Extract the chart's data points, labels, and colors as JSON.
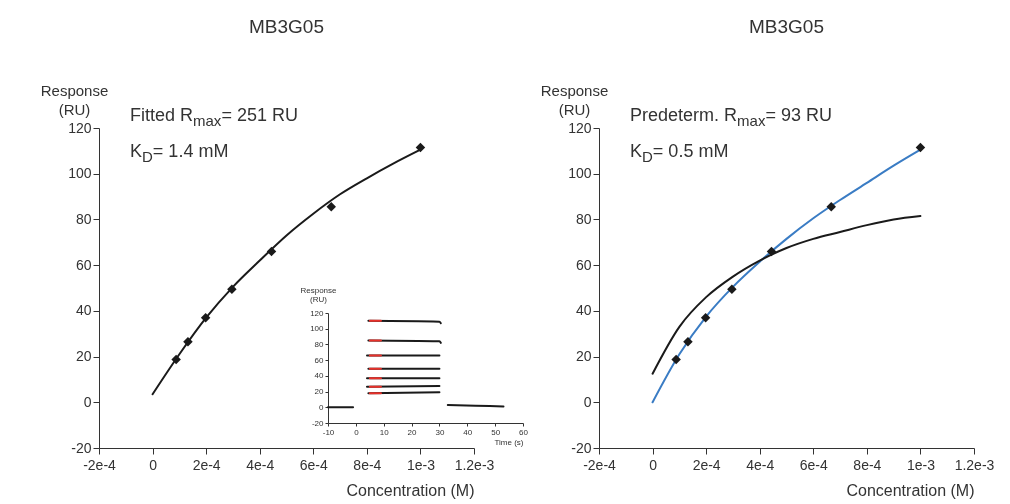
{
  "chart_data": [
    {
      "type": "line",
      "title": "MB3G05",
      "xlabel": "Concentration (M)",
      "ylabel": "Response (RU)",
      "annotations": [
        "Fitted R$_{max}$= 251 RU",
        "K$_{D}$= 1.4 mM"
      ],
      "xlim": [
        -0.0002,
        0.0012
      ],
      "xticks": [
        {
          "value": -0.0002,
          "label": "-2e-4"
        },
        0,
        {
          "value": 0.0002,
          "label": "2e-4"
        },
        {
          "value": 0.0004,
          "label": "4e-4"
        },
        {
          "value": 0.0006,
          "label": "6e-4"
        },
        {
          "value": 0.0008,
          "label": "8e-4"
        },
        {
          "value": 0.001,
          "label": "1e-3"
        },
        {
          "value": 0.0012,
          "label": "1.2e-3"
        }
      ],
      "ylim": [
        -20,
        120
      ],
      "yticks": [
        -20,
        0,
        20,
        40,
        60,
        80,
        100,
        120
      ],
      "grid": false,
      "series": [
        {
          "color": "#1a1a1a",
          "x": [
            0,
            0.0001,
            0.0002,
            0.0003,
            0.0004,
            0.0005,
            0.0006,
            0.0007,
            0.0008,
            0.0009,
            0.001
          ],
          "values": [
            3.5,
            21,
            37,
            50.5,
            62,
            73,
            82.5,
            91,
            98,
            104.5,
            110.5
          ]
        },
        {
          "type": "scatter",
          "marker": "diamond",
          "color": "#1a1a1a",
          "x": [
            8.8e-05,
            0.000132,
            0.000198,
            0.000296,
            0.000444,
            0.000667,
            0.001
          ],
          "values": [
            18.7,
            26.5,
            37,
            49.5,
            66,
            85.5,
            111.5
          ]
        }
      ]
    },
    {
      "type": "line",
      "title": "MB3G05",
      "xlabel": "Concentration (M)",
      "ylabel": "Response (RU)",
      "annotations": [
        "Predeterm. R$_{max}$= 93 RU",
        "K$_{D}$= 0.5 mM"
      ],
      "xlim": [
        -0.0002,
        0.0012
      ],
      "xticks": [
        {
          "value": -0.0002,
          "label": "-2e-4"
        },
        0,
        {
          "value": 0.0002,
          "label": "2e-4"
        },
        {
          "value": 0.0004,
          "label": "4e-4"
        },
        {
          "value": 0.0006,
          "label": "6e-4"
        },
        {
          "value": 0.0008,
          "label": "8e-4"
        },
        {
          "value": 0.001,
          "label": "1e-3"
        },
        {
          "value": 0.0012,
          "label": "1.2e-3"
        }
      ],
      "ylim": [
        -20,
        120
      ],
      "yticks": [
        -20,
        0,
        20,
        40,
        60,
        80,
        100,
        120
      ],
      "grid": false,
      "series": [
        {
          "color": "#3a7cc4",
          "x": [
            0,
            0.0001,
            0.0002,
            0.0003,
            0.0004,
            0.0005,
            0.0006,
            0.0007,
            0.0008,
            0.0009,
            0.001
          ],
          "values": [
            0,
            21,
            37.5,
            50.5,
            61.5,
            71.5,
            80.5,
            88.5,
            96,
            103.5,
            110.5
          ]
        },
        {
          "color": "#1a1a1a",
          "x": [
            0,
            0.0001,
            0.0002,
            0.0003,
            0.0004,
            0.0005,
            0.0006,
            0.0007,
            0.0008,
            0.0009,
            0.001
          ],
          "values": [
            12.5,
            33,
            46,
            55,
            62,
            67.5,
            71.5,
            74.5,
            77.5,
            80,
            81.5
          ]
        },
        {
          "type": "scatter",
          "marker": "diamond",
          "color": "#1a1a1a",
          "x": [
            8.8e-05,
            0.000132,
            0.000198,
            0.000296,
            0.000444,
            0.000667,
            0.001
          ],
          "values": [
            18.7,
            26.5,
            37,
            49.5,
            66,
            85.5,
            111.5
          ]
        }
      ]
    },
    {
      "type": "line",
      "xlabel": "Time (s)",
      "ylabel": "Response (RU)",
      "xlim": [
        -10,
        60
      ],
      "xticks": [
        -10,
        0,
        10,
        20,
        30,
        40,
        50,
        60
      ],
      "ylim": [
        -20,
        120
      ],
      "yticks": [
        -20,
        0,
        20,
        40,
        60,
        80,
        100,
        120
      ],
      "grid": false,
      "series": [
        {
          "color": "#1a1a1a",
          "x": [
            -10,
            -1
          ],
          "values": [
            0,
            0
          ]
        },
        {
          "color": "#1a1a1a",
          "x": [
            4.5,
            30,
            30.5
          ],
          "values": [
            110,
            109,
            107
          ]
        },
        {
          "color": "#1a1a1a",
          "x": [
            4.5,
            30,
            30.5
          ],
          "values": [
            85,
            84,
            82
          ]
        },
        {
          "color": "#1a1a1a",
          "x": [
            4,
            30
          ],
          "values": [
            66,
            66
          ]
        },
        {
          "color": "#1a1a1a",
          "x": [
            4.5,
            30
          ],
          "values": [
            49,
            49
          ]
        },
        {
          "color": "#1a1a1a",
          "x": [
            4,
            30
          ],
          "values": [
            37,
            37
          ]
        },
        {
          "color": "#1a1a1a",
          "x": [
            4,
            30
          ],
          "values": [
            26,
            27
          ]
        },
        {
          "color": "#1a1a1a",
          "x": [
            4.5,
            30
          ],
          "values": [
            18,
            19
          ]
        },
        {
          "color": "#1a1a1a",
          "x": [
            33,
            43,
            53
          ],
          "values": [
            3,
            2,
            1
          ]
        },
        {
          "color": "#e8302a",
          "x": [
            5,
            9
          ],
          "values": [
            110,
            110
          ]
        },
        {
          "color": "#e8302a",
          "x": [
            5,
            9
          ],
          "values": [
            85,
            85
          ]
        },
        {
          "color": "#e8302a",
          "x": [
            5,
            9
          ],
          "values": [
            66,
            66
          ]
        },
        {
          "color": "#e8302a",
          "x": [
            5,
            9
          ],
          "values": [
            49,
            49
          ]
        },
        {
          "color": "#e8302a",
          "x": [
            5,
            9
          ],
          "values": [
            37,
            37
          ]
        },
        {
          "color": "#e8302a",
          "x": [
            5,
            9
          ],
          "values": [
            26,
            26
          ]
        },
        {
          "color": "#e8302a",
          "x": [
            5,
            9
          ],
          "values": [
            18,
            18
          ]
        }
      ]
    }
  ]
}
